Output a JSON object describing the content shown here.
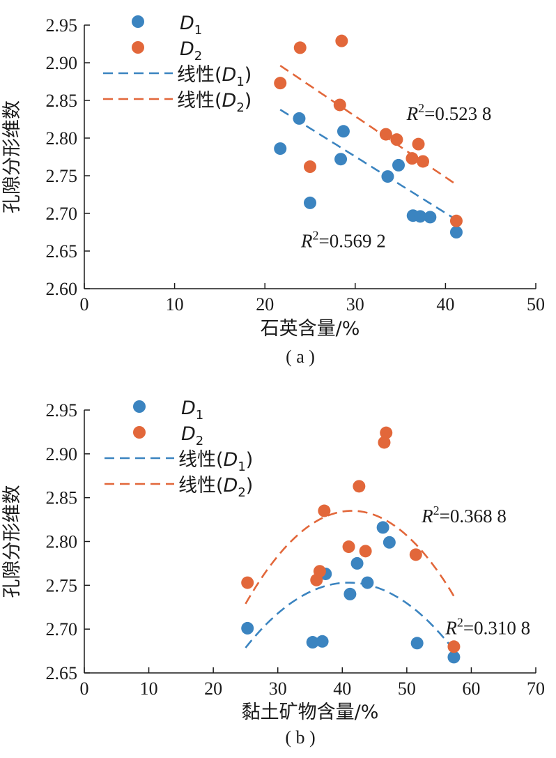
{
  "colors": {
    "D1": "#3b84c0",
    "D2": "#e2673a",
    "axis": "#1a1a1a"
  },
  "chart_data": [
    {
      "type": "scatter",
      "panel_label": "( a )",
      "xlabel": "石英含量/%",
      "ylabel": "孔隙分形维数",
      "xlim": [
        0,
        50
      ],
      "ylim": [
        2.6,
        2.95
      ],
      "xticks": [
        0,
        10,
        20,
        30,
        40,
        50
      ],
      "yticks": [
        2.6,
        2.65,
        2.7,
        2.75,
        2.8,
        2.85,
        2.9,
        2.95
      ],
      "xtick_labels": [
        "0",
        "10",
        "20",
        "30",
        "40",
        "50"
      ],
      "ytick_labels": [
        "2.60",
        "2.65",
        "2.70",
        "2.75",
        "2.80",
        "2.85",
        "2.90",
        "2.95"
      ],
      "legend": {
        "placement": "top-left",
        "entries": [
          {
            "key": "D1",
            "kind": "marker",
            "name": "D",
            "sub": "1",
            "prefix": "",
            "suffix": ""
          },
          {
            "key": "D2",
            "kind": "marker",
            "name": "D",
            "sub": "2",
            "prefix": "",
            "suffix": ""
          },
          {
            "key": "D1",
            "kind": "line",
            "name": "D",
            "sub": "1",
            "prefix": "线性(",
            "suffix": ")"
          },
          {
            "key": "D2",
            "kind": "line",
            "name": "D",
            "sub": "2",
            "prefix": "线性(",
            "suffix": ")"
          }
        ]
      },
      "series": [
        {
          "key": "D1",
          "points": [
            [
              21.7,
              2.786
            ],
            [
              23.8,
              2.826
            ],
            [
              25.0,
              2.714
            ],
            [
              28.4,
              2.772
            ],
            [
              28.7,
              2.809
            ],
            [
              33.6,
              2.749
            ],
            [
              34.8,
              2.764
            ],
            [
              36.4,
              2.697
            ],
            [
              37.2,
              2.696
            ],
            [
              38.3,
              2.695
            ],
            [
              41.2,
              2.675
            ]
          ],
          "fit": {
            "kind": "linear",
            "x_range": [
              21.7,
              41.2
            ],
            "coef": [
              3.0005,
              -0.0075
            ]
          },
          "r2": {
            "text": "R",
            "sup": "2",
            "rest": "=0.569 2",
            "anchor": [
              24.0,
              2.655
            ]
          }
        },
        {
          "key": "D2",
          "points": [
            [
              21.7,
              2.873
            ],
            [
              23.9,
              2.92
            ],
            [
              25.0,
              2.762
            ],
            [
              28.3,
              2.844
            ],
            [
              28.5,
              2.929
            ],
            [
              33.4,
              2.805
            ],
            [
              34.6,
              2.798
            ],
            [
              36.3,
              2.773
            ],
            [
              37.0,
              2.792
            ],
            [
              37.5,
              2.769
            ],
            [
              41.2,
              2.69
            ]
          ],
          "fit": {
            "kind": "linear",
            "x_range": [
              21.7,
              41.2
            ],
            "coef": [
              3.072,
              -0.0081
            ]
          },
          "r2": {
            "text": "R",
            "sup": "2",
            "rest": "=0.523 8",
            "anchor": [
              35.7,
              2.824
            ]
          }
        }
      ]
    },
    {
      "type": "scatter",
      "panel_label": "( b )",
      "xlabel": "黏土矿物含量/%",
      "ylabel": "孔隙分形维数",
      "xlim": [
        0,
        70
      ],
      "ylim": [
        2.65,
        2.95
      ],
      "xticks": [
        0,
        10,
        20,
        30,
        40,
        50,
        60,
        70
      ],
      "yticks": [
        2.65,
        2.7,
        2.75,
        2.8,
        2.85,
        2.9,
        2.95
      ],
      "xtick_labels": [
        "0",
        "10",
        "20",
        "30",
        "40",
        "50",
        "60",
        "70"
      ],
      "ytick_labels": [
        "2.65",
        "2.70",
        "2.75",
        "2.80",
        "2.85",
        "2.90",
        "2.95"
      ],
      "legend": {
        "placement": "top-left",
        "entries": [
          {
            "key": "D1",
            "kind": "marker",
            "name": "D",
            "sub": "1",
            "prefix": "",
            "suffix": ""
          },
          {
            "key": "D2",
            "kind": "marker",
            "name": "D",
            "sub": "2",
            "prefix": "",
            "suffix": ""
          },
          {
            "key": "D1",
            "kind": "line",
            "name": "D",
            "sub": "1",
            "prefix": "线性(",
            "suffix": ")"
          },
          {
            "key": "D2",
            "kind": "line",
            "name": "D",
            "sub": "2",
            "prefix": "线性(",
            "suffix": ")"
          }
        ]
      },
      "series": [
        {
          "key": "D1",
          "points": [
            [
              25.3,
              2.701
            ],
            [
              35.4,
              2.685
            ],
            [
              36.9,
              2.686
            ],
            [
              37.4,
              2.763
            ],
            [
              41.2,
              2.74
            ],
            [
              42.3,
              2.775
            ],
            [
              43.9,
              2.753
            ],
            [
              46.3,
              2.816
            ],
            [
              47.3,
              2.799
            ],
            [
              51.6,
              2.684
            ],
            [
              57.3,
              2.668
            ]
          ],
          "fit": {
            "kind": "quadratic",
            "x_range": [
              25.0,
              57.3
            ],
            "vertex": [
              41.0,
              2.753
            ],
            "a": -0.00029
          },
          "r2": {
            "text": "R",
            "sup": "2",
            "rest": "=0.310 8",
            "anchor": [
              56.0,
              2.694
            ]
          }
        },
        {
          "key": "D2",
          "points": [
            [
              25.3,
              2.753
            ],
            [
              36.0,
              2.756
            ],
            [
              36.5,
              2.766
            ],
            [
              37.2,
              2.835
            ],
            [
              41.0,
              2.794
            ],
            [
              42.6,
              2.863
            ],
            [
              43.6,
              2.789
            ],
            [
              46.5,
              2.913
            ],
            [
              46.8,
              2.924
            ],
            [
              51.4,
              2.785
            ],
            [
              57.3,
              2.68
            ]
          ],
          "fit": {
            "kind": "quadratic",
            "x_range": [
              25.0,
              57.3
            ],
            "vertex": [
              41.5,
              2.835
            ],
            "a": -0.00039
          },
          "r2": {
            "text": "R",
            "sup": "2",
            "rest": "=0.368 8",
            "anchor": [
              52.3,
              2.822
            ]
          }
        }
      ]
    }
  ]
}
